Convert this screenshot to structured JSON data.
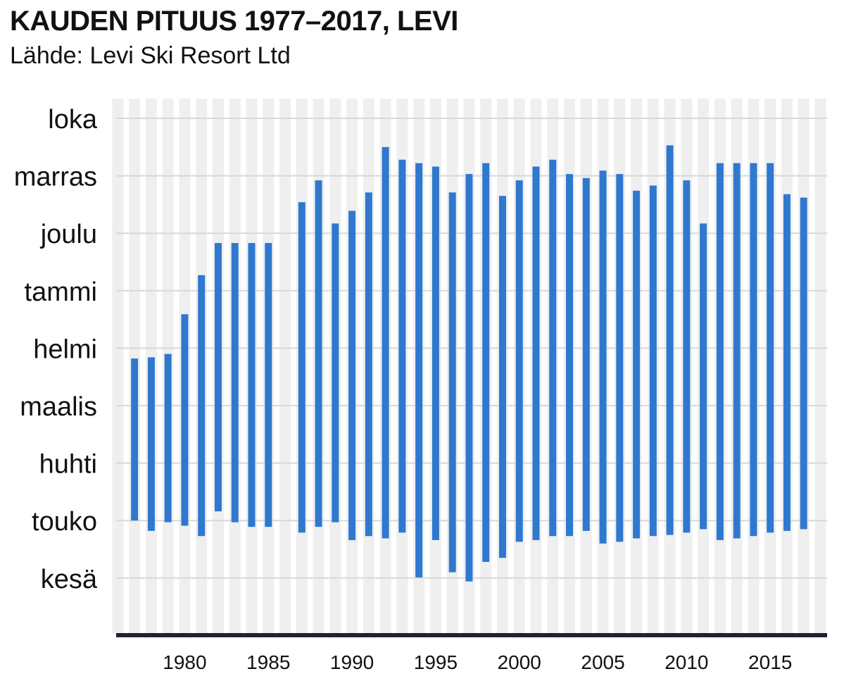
{
  "header": {
    "title": "KAUDEN PITUUS 1977–2017, LEVI",
    "source": "Lähde: Levi Ski Resort Ltd"
  },
  "colors": {
    "bar": "#2f78cf",
    "grid": "#d8d8d8",
    "stripe": "#efefef",
    "axis": "#22222f"
  },
  "chart_data": {
    "type": "bar",
    "subtype": "floating-range",
    "title": "KAUDEN PITUUS 1977–2017, LEVI",
    "subtitle": "Lähde: Levi Ski Resort Ltd",
    "y_categories": [
      "loka",
      "marras",
      "joulu",
      "tammi",
      "helmi",
      "maalis",
      "huhti",
      "touko",
      "kesä"
    ],
    "y_note": "months from loka (top) to kesä (bottom); values are month positions (loka=0 ... kesä=8)",
    "x_ticks": [
      1980,
      1985,
      1990,
      1995,
      2000,
      2005,
      2010,
      2015
    ],
    "xlim": [
      1975.9,
      2018.4
    ],
    "grid": true,
    "series": [
      {
        "values": [
          {
            "year": 1977,
            "start": 4.18,
            "end": 7.0
          },
          {
            "year": 1978,
            "start": 4.16,
            "end": 7.18
          },
          {
            "year": 1979,
            "start": 4.1,
            "end": 7.03
          },
          {
            "year": 1980,
            "start": 3.41,
            "end": 7.09
          },
          {
            "year": 1981,
            "start": 2.73,
            "end": 7.27
          },
          {
            "year": 1982,
            "start": 2.17,
            "end": 6.84
          },
          {
            "year": 1983,
            "start": 2.17,
            "end": 7.03
          },
          {
            "year": 1984,
            "start": 2.17,
            "end": 7.11
          },
          {
            "year": 1985,
            "start": 2.17,
            "end": 7.11
          },
          {
            "year": 1987,
            "start": 1.46,
            "end": 7.21
          },
          {
            "year": 1988,
            "start": 1.08,
            "end": 7.11
          },
          {
            "year": 1989,
            "start": 1.83,
            "end": 7.03
          },
          {
            "year": 1990,
            "start": 1.61,
            "end": 7.34
          },
          {
            "year": 1991,
            "start": 1.29,
            "end": 7.27
          },
          {
            "year": 1992,
            "start": 0.5,
            "end": 7.31
          },
          {
            "year": 1993,
            "start": 0.72,
            "end": 7.21
          },
          {
            "year": 1994,
            "start": 0.78,
            "end": 7.99
          },
          {
            "year": 1995,
            "start": 0.84,
            "end": 7.34
          },
          {
            "year": 1996,
            "start": 1.29,
            "end": 7.9
          },
          {
            "year": 1997,
            "start": 0.97,
            "end": 8.06
          },
          {
            "year": 1998,
            "start": 0.78,
            "end": 7.72
          },
          {
            "year": 1999,
            "start": 1.35,
            "end": 7.65
          },
          {
            "year": 2000,
            "start": 1.08,
            "end": 7.37
          },
          {
            "year": 2001,
            "start": 0.84,
            "end": 7.34
          },
          {
            "year": 2002,
            "start": 0.72,
            "end": 7.27
          },
          {
            "year": 2003,
            "start": 0.97,
            "end": 7.27
          },
          {
            "year": 2004,
            "start": 1.04,
            "end": 7.18
          },
          {
            "year": 2005,
            "start": 0.91,
            "end": 7.4
          },
          {
            "year": 2006,
            "start": 0.97,
            "end": 7.37
          },
          {
            "year": 2007,
            "start": 1.26,
            "end": 7.31
          },
          {
            "year": 2008,
            "start": 1.17,
            "end": 7.27
          },
          {
            "year": 2009,
            "start": 0.47,
            "end": 7.25
          },
          {
            "year": 2010,
            "start": 1.08,
            "end": 7.21
          },
          {
            "year": 2011,
            "start": 1.83,
            "end": 7.15
          },
          {
            "year": 2012,
            "start": 0.78,
            "end": 7.34
          },
          {
            "year": 2013,
            "start": 0.78,
            "end": 7.31
          },
          {
            "year": 2014,
            "start": 0.78,
            "end": 7.27
          },
          {
            "year": 2015,
            "start": 0.78,
            "end": 7.21
          },
          {
            "year": 2016,
            "start": 1.32,
            "end": 7.18
          },
          {
            "year": 2017,
            "start": 1.38,
            "end": 7.15
          }
        ]
      }
    ]
  }
}
